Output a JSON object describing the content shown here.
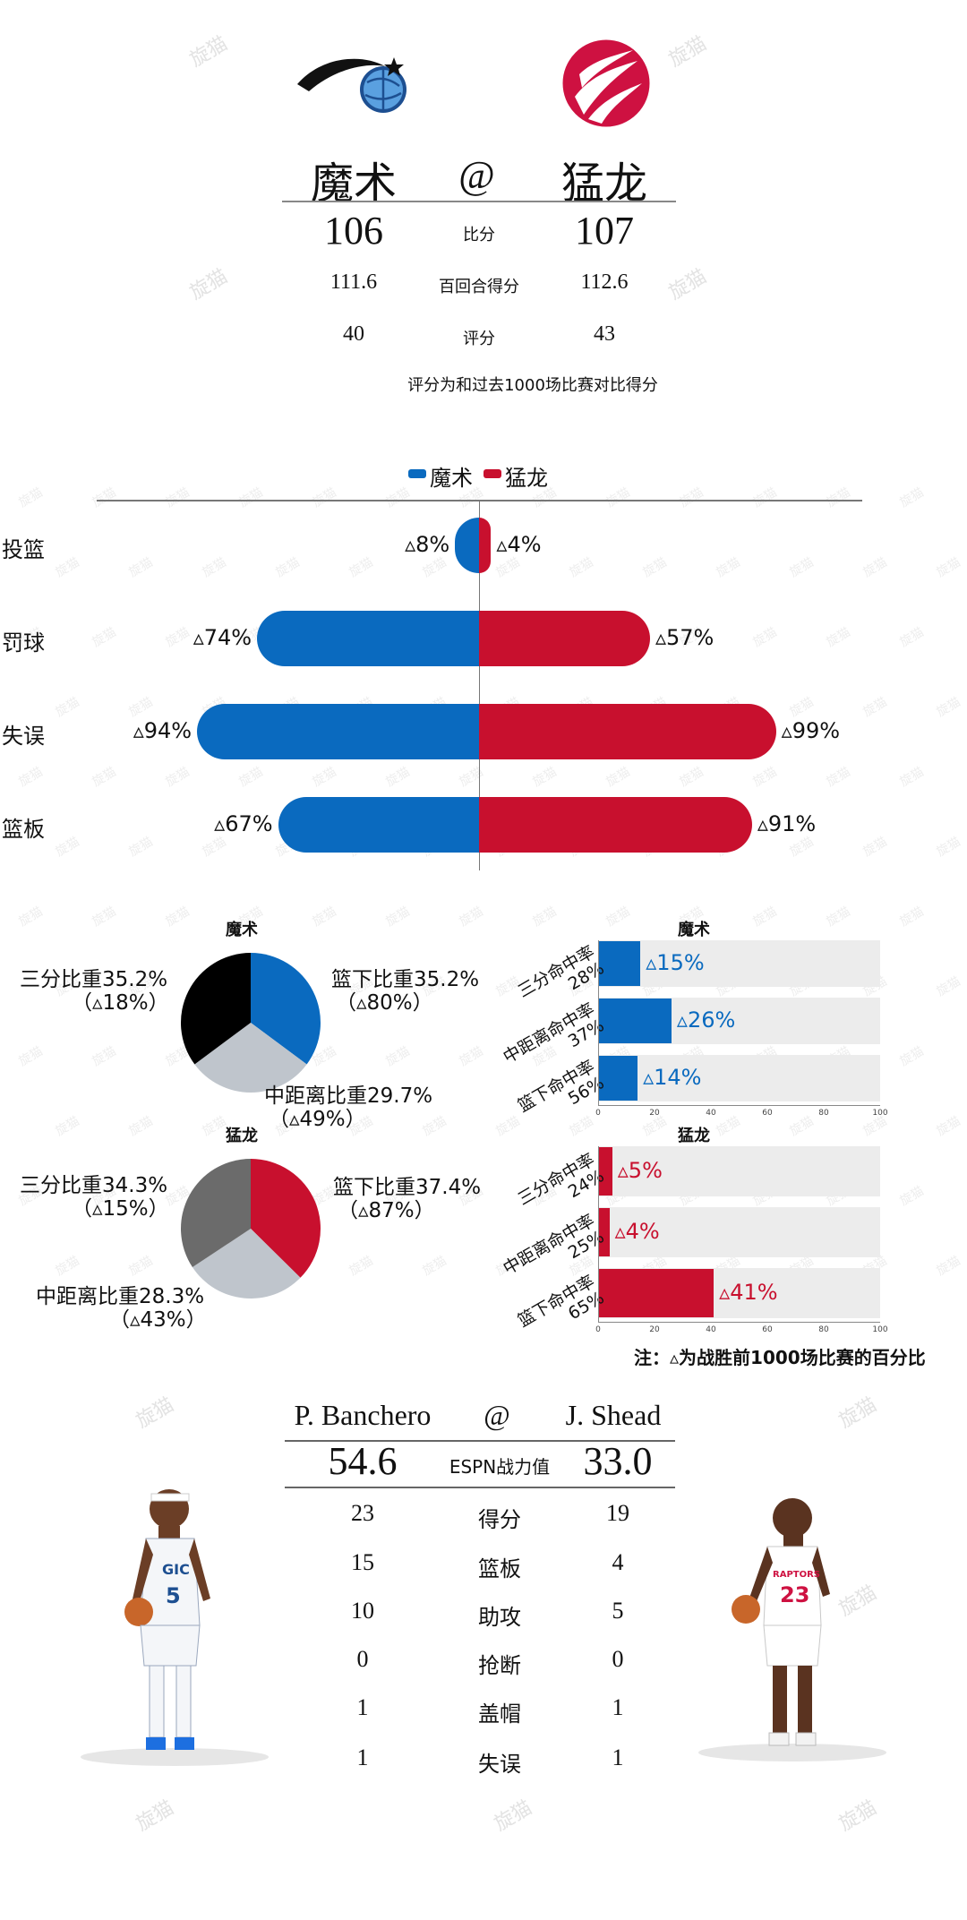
{
  "header": {
    "team_home": "魔术",
    "at": "@",
    "team_away": "猛龙",
    "rows": [
      {
        "label": "比分",
        "home": "106",
        "away": "107"
      },
      {
        "label": "百回合得分",
        "home": "111.6",
        "away": "112.6"
      },
      {
        "label": "评分",
        "home": "40",
        "away": "43"
      }
    ],
    "note": "评分为和过去1000场比赛对比得分"
  },
  "watermark": "旋猫",
  "colors": {
    "magic": "#0a6abf",
    "raptors": "#c8102e",
    "gray": "#bfc5cc",
    "black": "#000000",
    "darkgray": "#6b6b6b"
  },
  "chart_data": [
    {
      "type": "bar",
      "title": "",
      "legend": [
        "魔术",
        "猛龙"
      ],
      "categories": [
        "投篮",
        "罚球",
        "失误",
        "篮板"
      ],
      "series": [
        {
          "name": "魔术",
          "values": [
            8,
            74,
            94,
            67
          ],
          "labels": [
            "▵8%",
            "▵74%",
            "▵94%",
            "▵67%"
          ]
        },
        {
          "name": "猛龙",
          "values": [
            4,
            57,
            99,
            91
          ],
          "labels": [
            "▵4%",
            "▵57%",
            "▵99%",
            "▵91%"
          ]
        }
      ],
      "ylim": [
        0,
        100
      ]
    },
    {
      "type": "pie",
      "title": "魔术",
      "slices": [
        {
          "name": "篮下比重",
          "value": 35.2,
          "label": "篮下比重35.2%",
          "sub": "（▵80%）"
        },
        {
          "name": "中距离比重",
          "value": 29.7,
          "label": "中距离比重29.7%",
          "sub": "（▵49%）"
        },
        {
          "name": "三分比重",
          "value": 35.2,
          "label": "三分比重35.2%",
          "sub": "（▵18%）"
        }
      ]
    },
    {
      "type": "bar",
      "title": "魔术",
      "categories": [
        "三分命中率28%",
        "中距离命中率37%",
        "篮下命中率56%"
      ],
      "category_lines": [
        [
          "三分命中率",
          "28%"
        ],
        [
          "中距离命中率",
          "37%"
        ],
        [
          "篮下命中率",
          "56%"
        ]
      ],
      "values": [
        15,
        26,
        14
      ],
      "labels": [
        "▵15%",
        "▵26%",
        "▵14%"
      ],
      "xlim": [
        0,
        100
      ],
      "ticks": [
        "0",
        "20",
        "40",
        "60",
        "80",
        "100"
      ]
    },
    {
      "type": "pie",
      "title": "猛龙",
      "slices": [
        {
          "name": "篮下比重",
          "value": 37.4,
          "label": "篮下比重37.4%",
          "sub": "（▵87%）"
        },
        {
          "name": "中距离比重",
          "value": 28.3,
          "label": "中距离比重28.3%",
          "sub": "（▵43%）"
        },
        {
          "name": "三分比重",
          "value": 34.3,
          "label": "三分比重34.3%",
          "sub": "（▵15%）"
        }
      ]
    },
    {
      "type": "bar",
      "title": "猛龙",
      "categories": [
        "三分命中率24%",
        "中距离命中率25%",
        "篮下命中率65%"
      ],
      "category_lines": [
        [
          "三分命中率",
          "24%"
        ],
        [
          "中距离命中率",
          "25%"
        ],
        [
          "篮下命中率",
          "65%"
        ]
      ],
      "values": [
        5,
        4,
        41
      ],
      "labels": [
        "▵5%",
        "▵4%",
        "▵41%"
      ],
      "xlim": [
        0,
        100
      ],
      "ticks": [
        "0",
        "20",
        "40",
        "60",
        "80",
        "100"
      ]
    }
  ],
  "footnote": "注：▵为战胜前1000场比赛的百分比",
  "players": {
    "home_name": "P. Banchero",
    "at": "@",
    "away_name": "J. Shead",
    "home_number": "5",
    "away_number": "23",
    "home_jersey_text": "GIC",
    "away_jersey_text": "RAPTORS",
    "rows": [
      {
        "label": "ESPN战力值",
        "home": "54.6",
        "away": "33.0"
      },
      {
        "label": "得分",
        "home": "23",
        "away": "19"
      },
      {
        "label": "篮板",
        "home": "15",
        "away": "4"
      },
      {
        "label": "助攻",
        "home": "10",
        "away": "5"
      },
      {
        "label": "抢断",
        "home": "0",
        "away": "0"
      },
      {
        "label": "盖帽",
        "home": "1",
        "away": "1"
      },
      {
        "label": "失误",
        "home": "1",
        "away": "1"
      }
    ]
  }
}
